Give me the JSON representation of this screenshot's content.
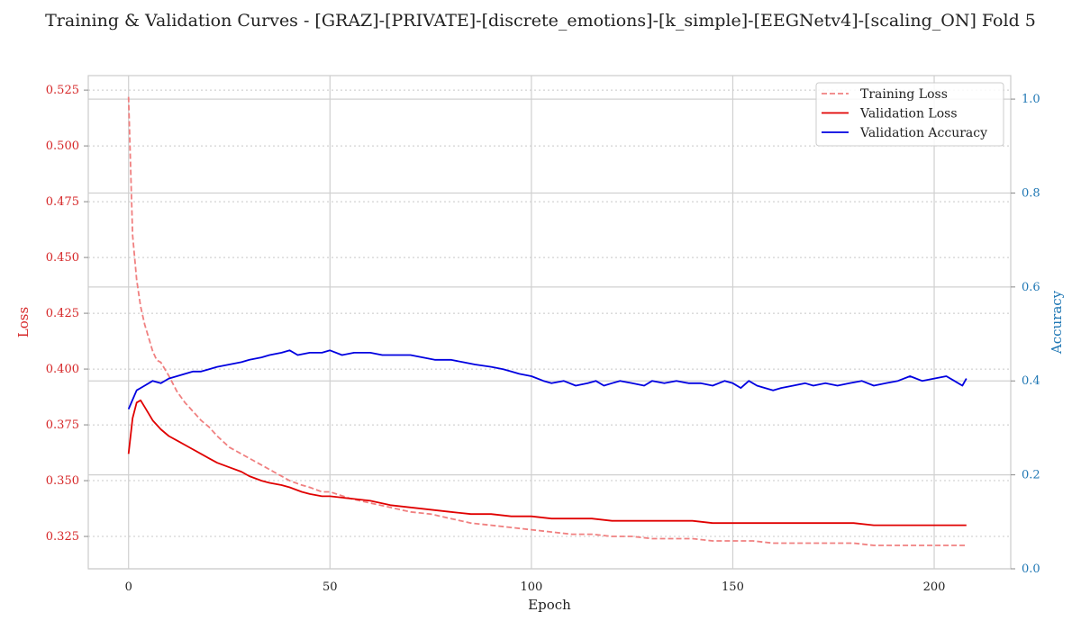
{
  "chart_data": {
    "type": "line",
    "title": "Training & Validation Curves - [GRAZ]-[PRIVATE]-[discrete_emotions]-[k_simple]-[EEGNetv4]-[scaling_ON] Fold 5",
    "xlabel": "Epoch",
    "ylabel_left": "Loss",
    "ylabel_right": "Accuracy",
    "xlim": [
      -10,
      219
    ],
    "ylim_left": [
      0.3105,
      0.5315
    ],
    "ylim_right": [
      0.0,
      1.05
    ],
    "x_ticks": [
      0,
      50,
      100,
      150,
      200
    ],
    "y_ticks_left": [
      0.325,
      0.35,
      0.375,
      0.4,
      0.425,
      0.45,
      0.475,
      0.5,
      0.525
    ],
    "y_ticks_right": [
      0.0,
      0.2,
      0.4,
      0.6,
      0.8,
      1.0
    ],
    "legend_position": "top-right",
    "grid": true,
    "colors": {
      "training_loss": "#f08080",
      "validation_loss": "#e00000",
      "validation_accuracy": "#0000e0",
      "left_axis": "#d62728",
      "right_axis": "#1f77b4"
    },
    "series": [
      {
        "name": "Training Loss",
        "axis": "left",
        "style": "dashed",
        "color": "#f08080",
        "x": [
          0,
          1,
          2,
          3,
          4,
          5,
          6,
          7,
          8,
          9,
          10,
          12,
          14,
          16,
          18,
          20,
          22,
          25,
          28,
          30,
          33,
          35,
          38,
          40,
          43,
          45,
          48,
          50,
          55,
          60,
          65,
          70,
          75,
          80,
          85,
          90,
          95,
          100,
          105,
          110,
          115,
          120,
          125,
          130,
          135,
          140,
          145,
          150,
          155,
          160,
          165,
          170,
          175,
          180,
          185,
          190,
          195,
          200,
          205,
          208
        ],
        "values": [
          0.522,
          0.46,
          0.44,
          0.428,
          0.42,
          0.414,
          0.408,
          0.404,
          0.403,
          0.4,
          0.397,
          0.39,
          0.385,
          0.381,
          0.377,
          0.374,
          0.37,
          0.365,
          0.362,
          0.36,
          0.357,
          0.355,
          0.352,
          0.35,
          0.348,
          0.347,
          0.345,
          0.345,
          0.342,
          0.34,
          0.338,
          0.336,
          0.335,
          0.333,
          0.331,
          0.33,
          0.329,
          0.328,
          0.327,
          0.326,
          0.326,
          0.325,
          0.325,
          0.324,
          0.324,
          0.324,
          0.323,
          0.323,
          0.323,
          0.322,
          0.322,
          0.322,
          0.322,
          0.322,
          0.321,
          0.321,
          0.321,
          0.321,
          0.321,
          0.321
        ]
      },
      {
        "name": "Validation Loss",
        "axis": "left",
        "style": "solid",
        "color": "#e00000",
        "x": [
          0,
          1,
          2,
          3,
          4,
          5,
          6,
          8,
          10,
          12,
          15,
          18,
          20,
          22,
          25,
          28,
          30,
          33,
          35,
          38,
          40,
          43,
          45,
          48,
          50,
          55,
          60,
          65,
          70,
          75,
          80,
          85,
          90,
          95,
          100,
          105,
          110,
          115,
          120,
          125,
          130,
          135,
          140,
          145,
          150,
          155,
          160,
          165,
          170,
          175,
          180,
          185,
          190,
          195,
          200,
          205,
          208
        ],
        "values": [
          0.362,
          0.378,
          0.385,
          0.386,
          0.383,
          0.38,
          0.377,
          0.373,
          0.37,
          0.368,
          0.365,
          0.362,
          0.36,
          0.358,
          0.356,
          0.354,
          0.352,
          0.35,
          0.349,
          0.348,
          0.347,
          0.345,
          0.344,
          0.343,
          0.343,
          0.342,
          0.341,
          0.339,
          0.338,
          0.337,
          0.336,
          0.335,
          0.335,
          0.334,
          0.334,
          0.333,
          0.333,
          0.333,
          0.332,
          0.332,
          0.332,
          0.332,
          0.332,
          0.331,
          0.331,
          0.331,
          0.331,
          0.331,
          0.331,
          0.331,
          0.331,
          0.33,
          0.33,
          0.33,
          0.33,
          0.33,
          0.33
        ]
      },
      {
        "name": "Validation Accuracy",
        "axis": "right",
        "style": "solid",
        "color": "#0000e0",
        "x": [
          0,
          1,
          2,
          3,
          4,
          5,
          6,
          8,
          10,
          12,
          14,
          16,
          18,
          20,
          22,
          25,
          28,
          30,
          33,
          35,
          38,
          40,
          42,
          45,
          48,
          50,
          53,
          56,
          60,
          63,
          66,
          70,
          73,
          76,
          80,
          83,
          86,
          90,
          93,
          95,
          97,
          100,
          103,
          105,
          108,
          111,
          114,
          116,
          118,
          120,
          122,
          125,
          128,
          130,
          133,
          136,
          139,
          142,
          145,
          148,
          150,
          152,
          154,
          156,
          158,
          160,
          162,
          165,
          168,
          170,
          173,
          176,
          179,
          182,
          185,
          188,
          191,
          194,
          197,
          200,
          203,
          205,
          207,
          208
        ],
        "values": [
          0.34,
          0.36,
          0.38,
          0.385,
          0.39,
          0.395,
          0.4,
          0.395,
          0.405,
          0.41,
          0.415,
          0.42,
          0.42,
          0.425,
          0.43,
          0.435,
          0.44,
          0.445,
          0.45,
          0.455,
          0.46,
          0.465,
          0.455,
          0.46,
          0.46,
          0.465,
          0.455,
          0.46,
          0.46,
          0.455,
          0.455,
          0.455,
          0.45,
          0.445,
          0.445,
          0.44,
          0.435,
          0.43,
          0.425,
          0.42,
          0.415,
          0.41,
          0.4,
          0.395,
          0.4,
          0.39,
          0.395,
          0.4,
          0.39,
          0.395,
          0.4,
          0.395,
          0.39,
          0.4,
          0.395,
          0.4,
          0.395,
          0.395,
          0.39,
          0.4,
          0.395,
          0.385,
          0.4,
          0.39,
          0.385,
          0.38,
          0.385,
          0.39,
          0.395,
          0.39,
          0.395,
          0.39,
          0.395,
          0.4,
          0.39,
          0.395,
          0.4,
          0.41,
          0.4,
          0.405,
          0.41,
          0.4,
          0.39,
          0.405
        ]
      }
    ]
  }
}
